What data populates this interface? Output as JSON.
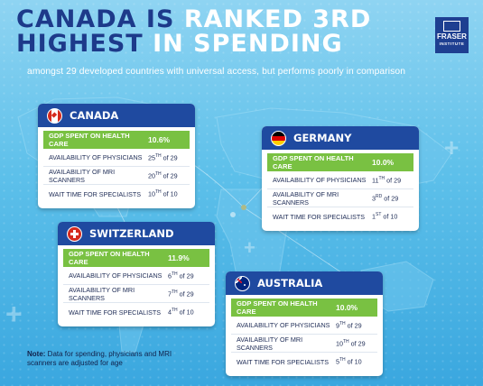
{
  "title": {
    "line1_a": "CANADA IS ",
    "line1_b": "RANKED 3RD",
    "line2_a": "HIGHEST ",
    "line2_b": "IN SPENDING"
  },
  "subtitle": "amongst 29 developed countries with universal access, but performs poorly in comparison",
  "logo": {
    "line1": "FRASER",
    "line2": "INSTITUTE"
  },
  "colors": {
    "header_blue": "#1f4aa0",
    "gdp_green": "#79c142",
    "title_navy": "#1d3a8a"
  },
  "cards": [
    {
      "id": "canada",
      "name": "CANADA",
      "flag_icon": "canada-flag-icon",
      "gdp_label": "GDP SPENT ON HEALTH CARE",
      "gdp_value": "10.6%",
      "rows": [
        {
          "label": "AVAILABILITY OF PHYSICIANS",
          "rank": "25",
          "sup": "TH",
          "of": "of 29"
        },
        {
          "label": "AVAILABILITY OF MRI SCANNERS",
          "rank": "20",
          "sup": "TH",
          "of": "of 29"
        },
        {
          "label": "WAIT TIME FOR SPECIALISTS",
          "rank": "10",
          "sup": "TH",
          "of": "of 10"
        }
      ]
    },
    {
      "id": "germany",
      "name": "GERMANY",
      "flag_icon": "germany-flag-icon",
      "gdp_label": "GDP SPENT ON HEALTH CARE",
      "gdp_value": "10.0%",
      "rows": [
        {
          "label": "AVAILABILITY OF PHYSICIANS",
          "rank": "11",
          "sup": "TH",
          "of": "of 29"
        },
        {
          "label": "AVAILABILITY OF MRI SCANNERS",
          "rank": "3",
          "sup": "RD",
          "of": "of 29"
        },
        {
          "label": "WAIT TIME FOR SPECIALISTS",
          "rank": "1",
          "sup": "ST",
          "of": "of 10"
        }
      ]
    },
    {
      "id": "switzerland",
      "name": "SWITZERLAND",
      "flag_icon": "switzerland-flag-icon",
      "gdp_label": "GDP SPENT ON HEALTH CARE",
      "gdp_value": "11.9%",
      "rows": [
        {
          "label": "AVAILABILITY OF PHYSICIANS",
          "rank": "6",
          "sup": "TH",
          "of": "of 29"
        },
        {
          "label": "AVAILABILITY OF MRI SCANNERS",
          "rank": "7",
          "sup": "TH",
          "of": "of 29"
        },
        {
          "label": "WAIT TIME FOR SPECIALISTS",
          "rank": "4",
          "sup": "TH",
          "of": "of 10"
        }
      ]
    },
    {
      "id": "australia",
      "name": "AUSTRALIA",
      "flag_icon": "australia-flag-icon",
      "gdp_label": "GDP SPENT ON HEALTH CARE",
      "gdp_value": "10.0%",
      "rows": [
        {
          "label": "AVAILABILITY OF PHYSICIANS",
          "rank": "9",
          "sup": "TH",
          "of": "of 29"
        },
        {
          "label": "AVAILABILITY OF MRI SCANNERS",
          "rank": "10",
          "sup": "TH",
          "of": "of 29"
        },
        {
          "label": "WAIT TIME FOR SPECIALISTS",
          "rank": "5",
          "sup": "TH",
          "of": "of 10"
        }
      ]
    }
  ],
  "note": {
    "label": "Note:",
    "text": " Data for spending, physicians and MRI scanners are adjusted for age"
  }
}
